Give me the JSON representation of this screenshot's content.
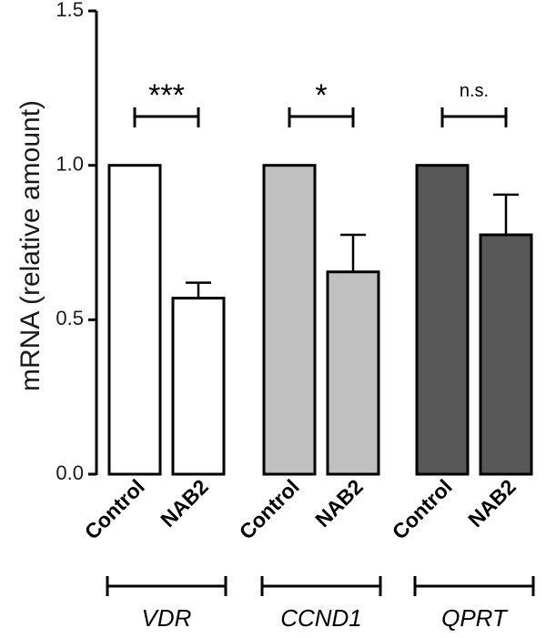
{
  "chart_data": {
    "type": "bar",
    "ylabel": "mRNA (relative amount)",
    "ylim": [
      0,
      1.5
    ],
    "yticks": [
      0.0,
      0.5,
      1.0,
      1.5
    ],
    "ytick_labels": [
      "0.0",
      "0.5",
      "1.0",
      "1.5"
    ],
    "groups": [
      {
        "gene": "VDR",
        "color": "#ffffff",
        "significance": "***",
        "bars": [
          {
            "label": "Control",
            "value": 1.0,
            "error": 0.0
          },
          {
            "label": "NAB2",
            "value": 0.57,
            "error": 0.05
          }
        ]
      },
      {
        "gene": "CCND1",
        "color": "#c0c0c0",
        "significance": "*",
        "bars": [
          {
            "label": "Control",
            "value": 1.0,
            "error": 0.0
          },
          {
            "label": "NAB2",
            "value": 0.655,
            "error": 0.12
          }
        ]
      },
      {
        "gene": "QPRT",
        "color": "#585858",
        "significance": "n.s.",
        "bars": [
          {
            "label": "Control",
            "value": 1.0,
            "error": 0.0
          },
          {
            "label": "NAB2",
            "value": 0.775,
            "error": 0.13
          }
        ]
      }
    ]
  }
}
